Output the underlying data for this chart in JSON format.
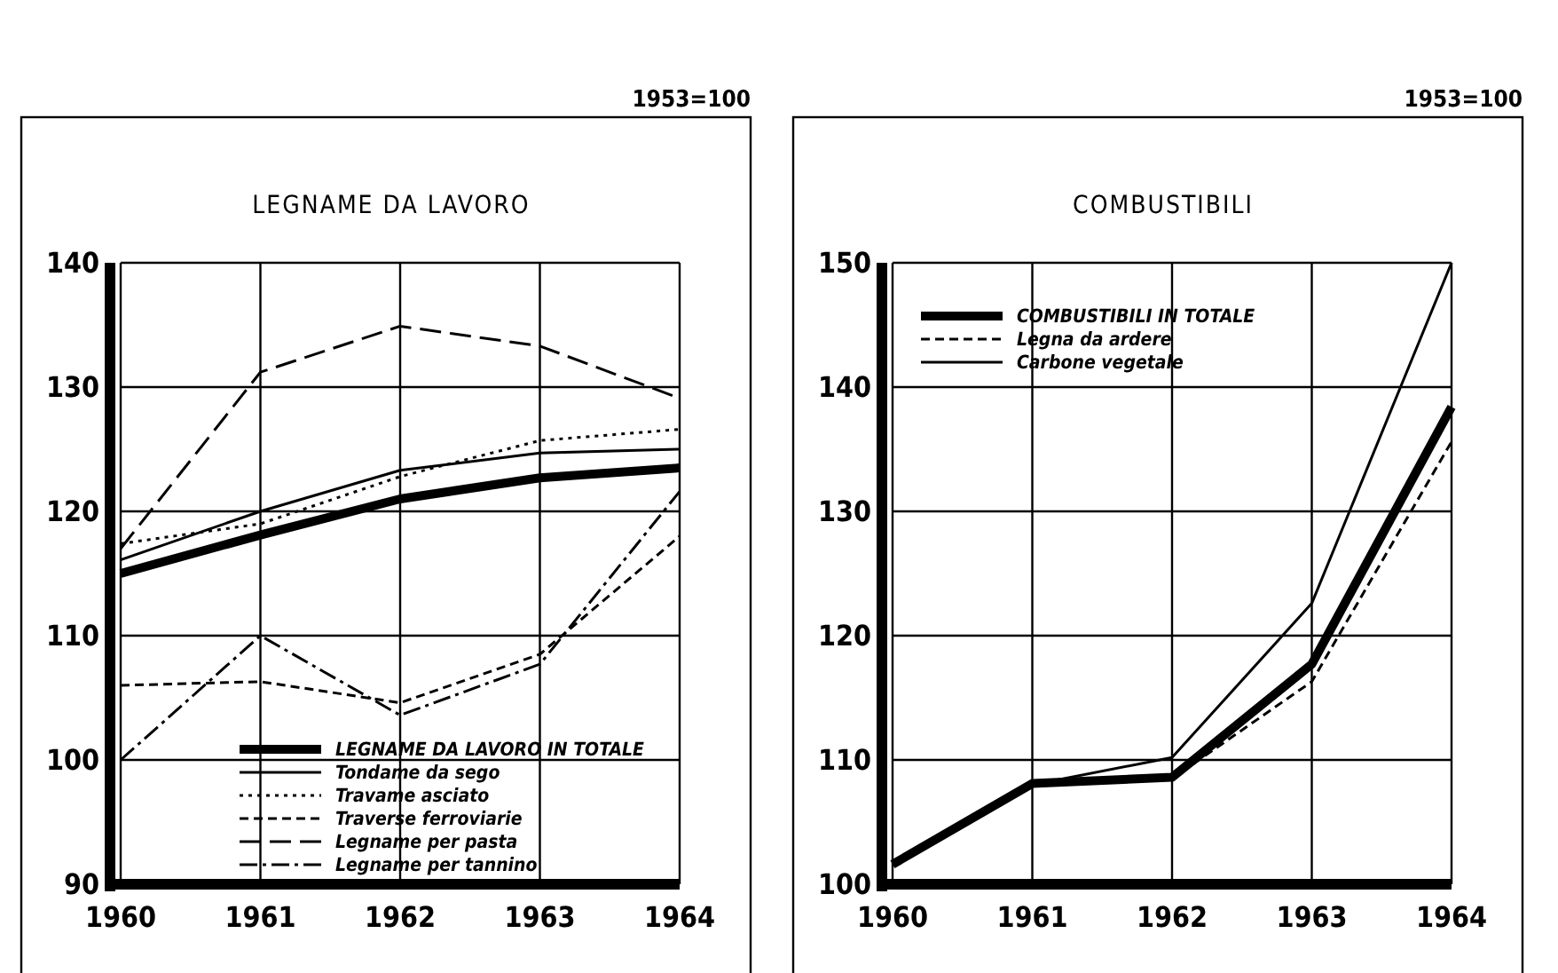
{
  "chart_data": [
    {
      "type": "line",
      "title": "LEGNAME DA LAVORO",
      "subtitle": "1953=100",
      "x": [
        1960,
        1961,
        1962,
        1963,
        1964
      ],
      "xlim": [
        1960,
        1964
      ],
      "xticks": [
        1960,
        1961,
        1962,
        1963,
        1964
      ],
      "ylim": [
        90,
        140
      ],
      "yticks": [
        90,
        100,
        110,
        120,
        130,
        140
      ],
      "grid": true,
      "legend": "bottom right",
      "series": [
        {
          "name": "LEGNAME DA LAVORO IN TOTALE",
          "color": "#000000",
          "line_style": "solid",
          "values": [
            115,
            118.1,
            121,
            122.7,
            123.5
          ]
        },
        {
          "name": "Tondame da sego",
          "color": "#000000",
          "line_style": "solid",
          "values": [
            116.1,
            120,
            123.3,
            124.7,
            125
          ]
        },
        {
          "name": "Travame asciato",
          "color": "#000000",
          "line_style": "dotted",
          "values": [
            117.4,
            119,
            122.8,
            125.7,
            126.6
          ]
        },
        {
          "name": "Traverse ferroviarie",
          "color": "#000000",
          "line_style": "dashed",
          "values": [
            106,
            106.3,
            104.6,
            108.5,
            118
          ]
        },
        {
          "name": "Legname per pasta",
          "color": "#000000",
          "line_style": "longdash",
          "values": [
            117,
            131.2,
            134.9,
            133.3,
            129.1
          ]
        },
        {
          "name": "Legname per tannino",
          "color": "#000000",
          "line_style": "dashdot",
          "values": [
            100,
            110,
            103.6,
            107.7,
            121.6
          ]
        }
      ]
    },
    {
      "type": "line",
      "title": "COMBUSTIBILI",
      "subtitle": "1953=100",
      "x": [
        1960,
        1961,
        1962,
        1963,
        1964
      ],
      "xlim": [
        1960,
        1964
      ],
      "xticks": [
        1960,
        1961,
        1962,
        1963,
        1964
      ],
      "ylim": [
        100,
        150
      ],
      "yticks": [
        100,
        110,
        120,
        130,
        140,
        150
      ],
      "grid": true,
      "legend": "top left",
      "series": [
        {
          "name": "COMBUSTIBILI IN TOTALE",
          "color": "#000000",
          "line_style": "solid",
          "values": [
            101.6,
            108.1,
            108.6,
            117.7,
            138.4
          ]
        },
        {
          "name": "Legna da ardere",
          "color": "#000000",
          "line_style": "dashed",
          "values": [
            101.6,
            108,
            108.5,
            116.3,
            135.6
          ]
        },
        {
          "name": "Carbone vegetale",
          "color": "#000000",
          "line_style": "solid",
          "values": [
            101.6,
            108,
            110.2,
            122.6,
            150
          ]
        }
      ]
    }
  ]
}
